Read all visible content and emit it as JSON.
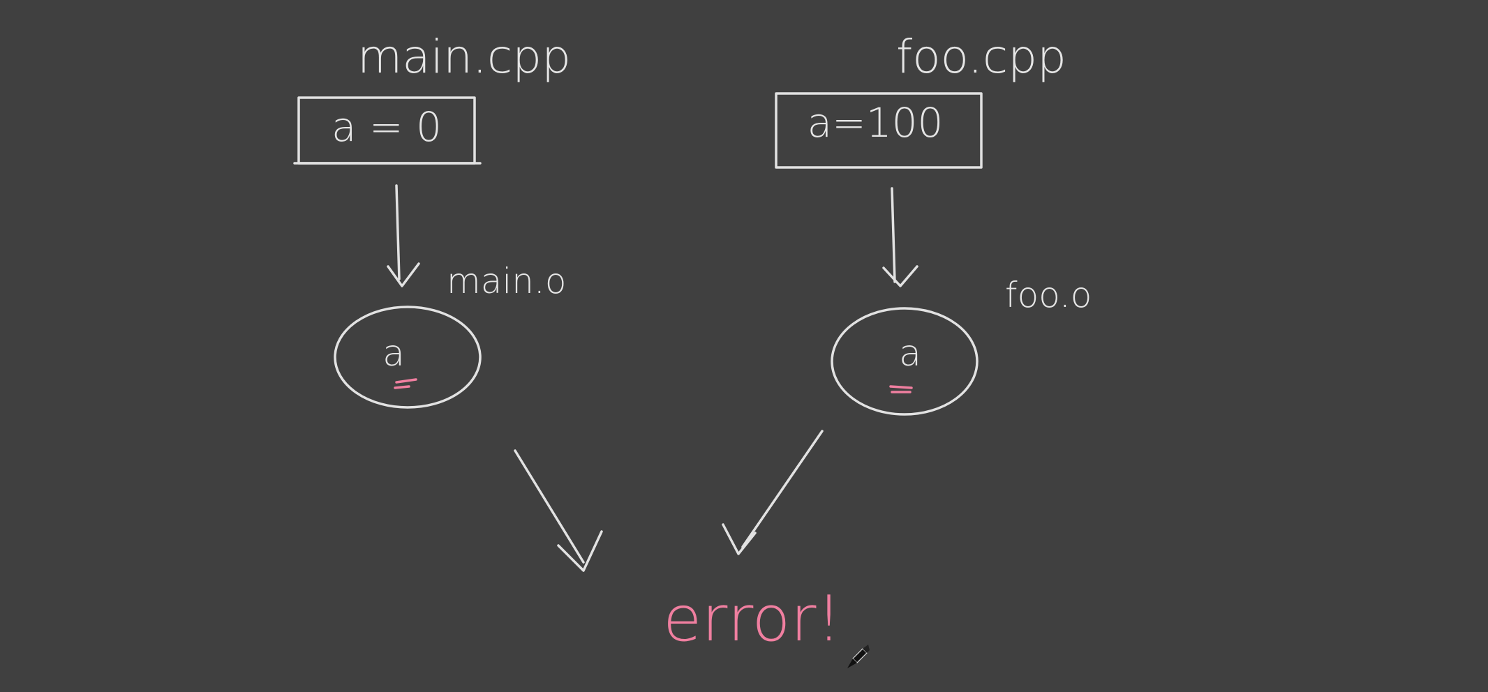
{
  "diagram": {
    "left": {
      "source_file": "main.cpp",
      "source_content": "a = 0",
      "object_file": "main.o",
      "symbol": "a"
    },
    "right": {
      "source_file": "foo.cpp",
      "source_content": "a=100",
      "object_file": "foo.o",
      "symbol": "a"
    },
    "result": "error!"
  },
  "colors": {
    "background": "#404040",
    "ink": "#e2e2e2",
    "highlight": "#f07fa0"
  }
}
